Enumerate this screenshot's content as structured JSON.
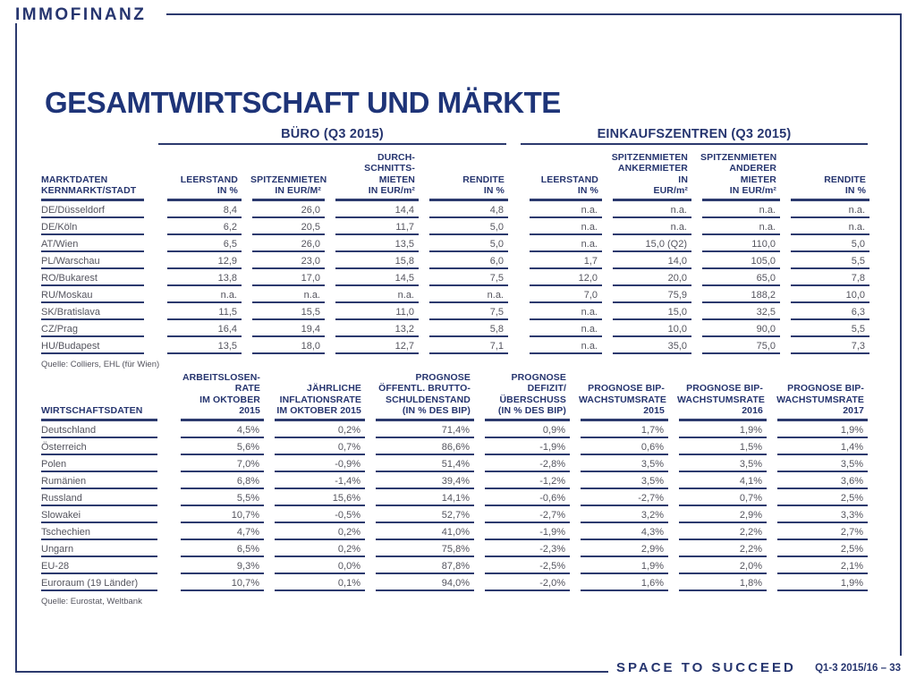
{
  "brand": {
    "logo": "IMMOFINANZ"
  },
  "colors": {
    "accent": "#26356f",
    "line": "#2c3a6e",
    "body_text": "#54545e",
    "title": "#1e3478"
  },
  "page_title": "GESAMTWIRTSCHAFT UND MÄRKTE",
  "market_table": {
    "group_headers": [
      {
        "label": "BÜRO (Q3 2015)"
      },
      {
        "label": "EINKAUFSZENTREN (Q3 2015)"
      }
    ],
    "row_header_label": "MARKTDATEN\nKERNMARKT/STADT",
    "columns": [
      "LEERSTAND\nIN %",
      "SPITZENMIETEN\nIN EUR/M²",
      "DURCH-\nSCHNITTS-\nMIETEN\nIN EUR/m²",
      "RENDITE\nIN %",
      "LEERSTAND\nIN %",
      "SPITZENMIETEN\nANKERMIETER IN\nEUR/m²",
      "SPITZENMIETEN\nANDERER\nMIETER\nIN EUR/m²",
      "RENDITE\nIN %"
    ],
    "rows": [
      {
        "label": "DE/Düsseldorf",
        "values": [
          "8,4",
          "26,0",
          "14,4",
          "4,8",
          "n.a.",
          "n.a.",
          "n.a.",
          "n.a."
        ]
      },
      {
        "label": "DE/Köln",
        "values": [
          "6,2",
          "20,5",
          "11,7",
          "5,0",
          "n.a.",
          "n.a.",
          "n.a.",
          "n.a."
        ]
      },
      {
        "label": "AT/Wien",
        "values": [
          "6,5",
          "26,0",
          "13,5",
          "5,0",
          "n.a.",
          "15,0 (Q2)",
          "110,0",
          "5,0"
        ]
      },
      {
        "label": "PL/Warschau",
        "values": [
          "12,9",
          "23,0",
          "15,8",
          "6,0",
          "1,7",
          "14,0",
          "105,0",
          "5,5"
        ]
      },
      {
        "label": "RO/Bukarest",
        "values": [
          "13,8",
          "17,0",
          "14,5",
          "7,5",
          "12,0",
          "20,0",
          "65,0",
          "7,8"
        ]
      },
      {
        "label": "RU/Moskau",
        "values": [
          "n.a.",
          "n.a.",
          "n.a.",
          "n.a.",
          "7,0",
          "75,9",
          "188,2",
          "10,0"
        ]
      },
      {
        "label": "SK/Bratislava",
        "values": [
          "11,5",
          "15,5",
          "11,0",
          "7,5",
          "n.a.",
          "15,0",
          "32,5",
          "6,3"
        ]
      },
      {
        "label": "CZ/Prag",
        "values": [
          "16,4",
          "19,4",
          "13,2",
          "5,8",
          "n.a.",
          "10,0",
          "90,0",
          "5,5"
        ]
      },
      {
        "label": "HU/Budapest",
        "values": [
          "13,5",
          "18,0",
          "12,7",
          "7,1",
          "n.a.",
          "35,0",
          "75,0",
          "7,3"
        ]
      }
    ],
    "source": "Quelle: Colliers, EHL (für Wien)"
  },
  "economy_table": {
    "row_header_label": "WIRTSCHAFTSDATEN",
    "columns": [
      "ARBEITSLOSEN-\nRATE\nIM OKTOBER 2015",
      "JÄHRLICHE\nINFLATIONSRATE\nIM OKTOBER 2015",
      "PROGNOSE\nÖFFENTL. BRUTTO-\nSCHULDENSTAND\n(IN % DES BIP)",
      "PROGNOSE\nDEFIZIT/\nÜBERSCHUSS\n(IN % DES BIP)",
      "PROGNOSE BIP-\nWACHSTUMSRATE\n2015",
      "PROGNOSE BIP-\nWACHSTUMSRATE\n2016",
      "PROGNOSE BIP-\nWACHSTUMSRATE\n2017"
    ],
    "rows": [
      {
        "label": "Deutschland",
        "values": [
          "4,5%",
          "0,2%",
          "71,4%",
          "0,9%",
          "1,7%",
          "1,9%",
          "1,9%"
        ]
      },
      {
        "label": "Österreich",
        "values": [
          "5,6%",
          "0,7%",
          "86,6%",
          "-1,9%",
          "0,6%",
          "1,5%",
          "1,4%"
        ]
      },
      {
        "label": "Polen",
        "values": [
          "7,0%",
          "-0,9%",
          "51,4%",
          "-2,8%",
          "3,5%",
          "3,5%",
          "3,5%"
        ]
      },
      {
        "label": "Rumänien",
        "values": [
          "6,8%",
          "-1,4%",
          "39,4%",
          "-1,2%",
          "3,5%",
          "4,1%",
          "3,6%"
        ]
      },
      {
        "label": "Russland",
        "values": [
          "5,5%",
          "15,6%",
          "14,1%",
          "-0,6%",
          "-2,7%",
          "0,7%",
          "2,5%"
        ]
      },
      {
        "label": "Slowakei",
        "values": [
          "10,7%",
          "-0,5%",
          "52,7%",
          "-2,7%",
          "3,2%",
          "2,9%",
          "3,3%"
        ]
      },
      {
        "label": "Tschechien",
        "values": [
          "4,7%",
          "0,2%",
          "41,0%",
          "-1,9%",
          "4,3%",
          "2,2%",
          "2,7%"
        ]
      },
      {
        "label": "Ungarn",
        "values": [
          "6,5%",
          "0,2%",
          "75,8%",
          "-2,3%",
          "2,9%",
          "2,2%",
          "2,5%"
        ]
      },
      {
        "label": "EU-28",
        "values": [
          "9,3%",
          "0,0%",
          "87,8%",
          "-2,5%",
          "1,9%",
          "2,0%",
          "2,1%"
        ]
      },
      {
        "label": "Euroraum (19 Länder)",
        "values": [
          "10,7%",
          "0,1%",
          "94,0%",
          "-2,0%",
          "1,6%",
          "1,8%",
          "1,9%"
        ]
      }
    ],
    "source": "Quelle: Eurostat, Weltbank"
  },
  "footer": {
    "tagline": "SPACE TO SUCCEED",
    "page_ref": "Q1-3 2015/16 – 33"
  }
}
